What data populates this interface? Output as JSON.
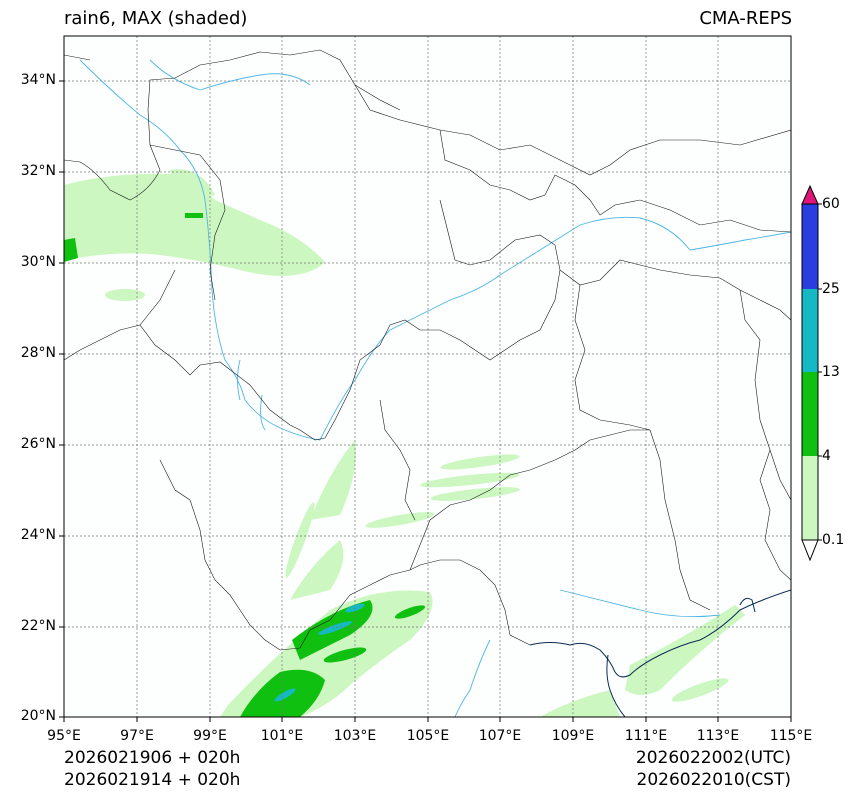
{
  "header": {
    "title_left": "rain6, MAX (shaded)",
    "title_right": "CMA-REPS"
  },
  "map": {
    "lat_labels": [
      "34°N",
      "32°N",
      "30°N",
      "28°N",
      "26°N",
      "24°N",
      "22°N",
      "20°N"
    ],
    "lon_labels": [
      "95°E",
      "97°E",
      "99°E",
      "101°E",
      "103°E",
      "105°E",
      "107°E",
      "109°E",
      "111°E",
      "113°E",
      "115°E"
    ],
    "lat_range": [
      20,
      35
    ],
    "lon_range": [
      95,
      115
    ]
  },
  "colorbar": {
    "levels": [
      "60",
      "25",
      "13",
      "4",
      "0.1"
    ],
    "colors": {
      "over": "#e0157a",
      "c60": "#2a3ee0",
      "c25": "#16b8c4",
      "c13": "#10c010",
      "c4": "#ccf7c0",
      "under": "#ffffff"
    }
  },
  "footer": {
    "init_utc": "2026021906  +  020h",
    "init_cst": "2026021914  +  020h",
    "valid_utc": "2026022002(UTC)",
    "valid_cst": "2026022010(CST)"
  }
}
